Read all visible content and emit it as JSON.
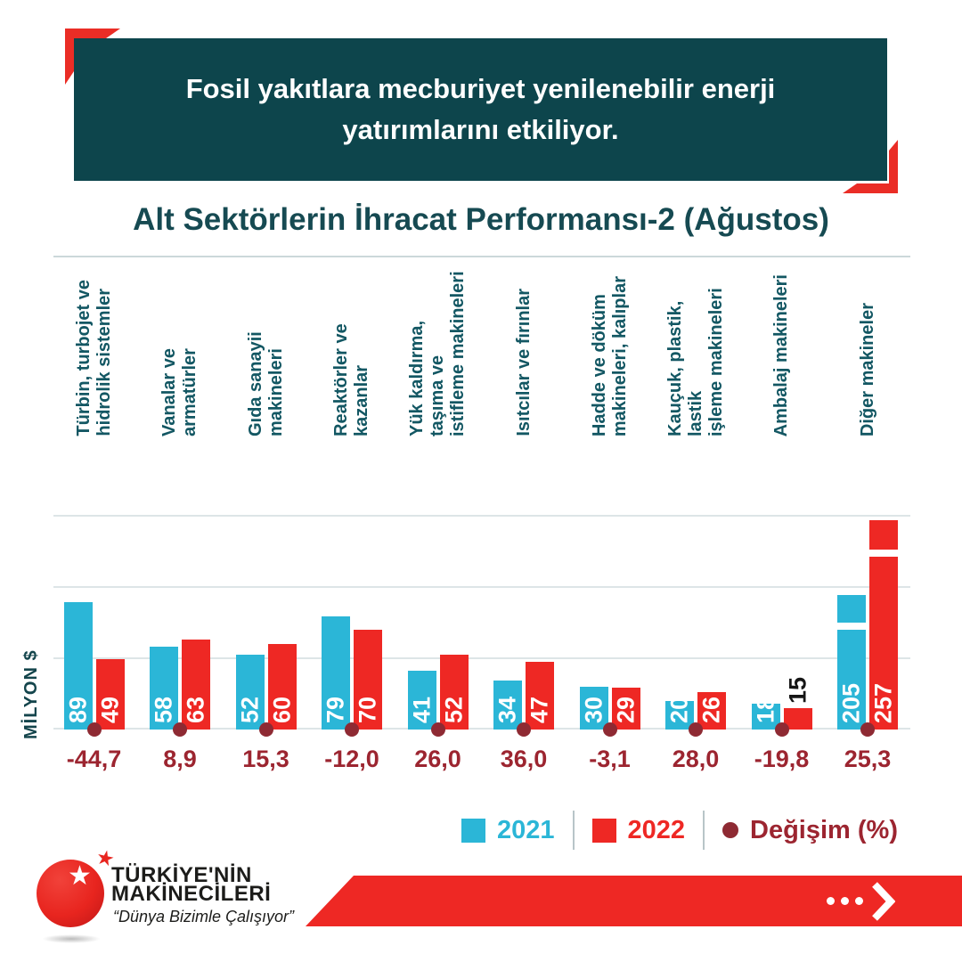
{
  "colors": {
    "header_bg": "#0d454c",
    "accent_red": "#ea2d26",
    "bar_2021_cyan": "#2bb6d7",
    "bar_2022_red": "#ee2824",
    "change_dot_maroon": "#8e2a33",
    "change_text_maroon": "#9c2530",
    "title_teal": "#164a52",
    "gridline_gray": "#dde5e7"
  },
  "header": {
    "banner_text": "Fosil yakıtlara mecburiyet yenilenebilir enerji yatırımlarını etkiliyor."
  },
  "chart": {
    "title": "Alt Sektörlerin İhracat Performansı-2 (Ağustos)",
    "y_axis_label": "MİLYON $"
  },
  "legend": {
    "items": [
      {
        "label": "2021",
        "swatch": "square",
        "color": "#2bb6d7"
      },
      {
        "label": "2022",
        "swatch": "square",
        "color": "#ee2824"
      },
      {
        "label": "Değişim (%)",
        "swatch": "dot",
        "color": "#8e2a33"
      }
    ]
  },
  "footer": {
    "brand_line1": "TÜRKİYE'NİN",
    "brand_line2": "MAKİNECİLERİ",
    "slogan": "“Dünya Bizimle Çalışıyor”"
  },
  "icons": {
    "white_star": "★",
    "mini_star": "★"
  },
  "chart_data": {
    "type": "bar",
    "title": "Alt Sektörlerin İhracat Performansı-2 (Ağustos)",
    "ylabel": "MİLYON $",
    "unit": "MİLYON $",
    "ylim": [
      0,
      150
    ],
    "gridline_values": [
      0,
      50,
      100,
      150
    ],
    "grid": true,
    "legend_position": "bottom-right",
    "categories": [
      [
        "Türbin, turbojet ve",
        "hidrolik sistemler"
      ],
      [
        "Vanalar ve armatürler"
      ],
      [
        "Gıda sanayii makineleri"
      ],
      [
        "Reaktörler ve kazanlar"
      ],
      [
        "Yük kaldırma, taşıma ve",
        "istifleme makineleri"
      ],
      [
        "Isıtcılar ve fırınlar"
      ],
      [
        "Hadde ve döküm",
        "makineleri, kalıplar"
      ],
      [
        "Kauçuk, plastik, lastik",
        "işleme makineleri"
      ],
      [
        "Ambalaj makineleri"
      ],
      [
        "Diğer makineler"
      ]
    ],
    "series": [
      {
        "name": "2021",
        "color": "#2bb6d7",
        "values": [
          89,
          58,
          52,
          79,
          41,
          34,
          30,
          20,
          18,
          205
        ]
      },
      {
        "name": "2022",
        "color": "#ee2824",
        "values": [
          49,
          63,
          60,
          70,
          52,
          47,
          29,
          26,
          15,
          257
        ]
      }
    ],
    "change_percent": [
      "-44,7",
      "8,9",
      "15,3",
      "-12,0",
      "26,0",
      "36,0",
      "-3,1",
      "28,0",
      "-19,8",
      "25,3"
    ],
    "annotations": {
      "axis_break_bars": [
        {
          "category_index": 9,
          "series": "2021",
          "value": 205
        },
        {
          "category_index": 9,
          "series": "2022",
          "value": 257
        }
      ],
      "outside_value_label": {
        "category_index": 8,
        "series": "2022",
        "value": 15
      }
    }
  }
}
